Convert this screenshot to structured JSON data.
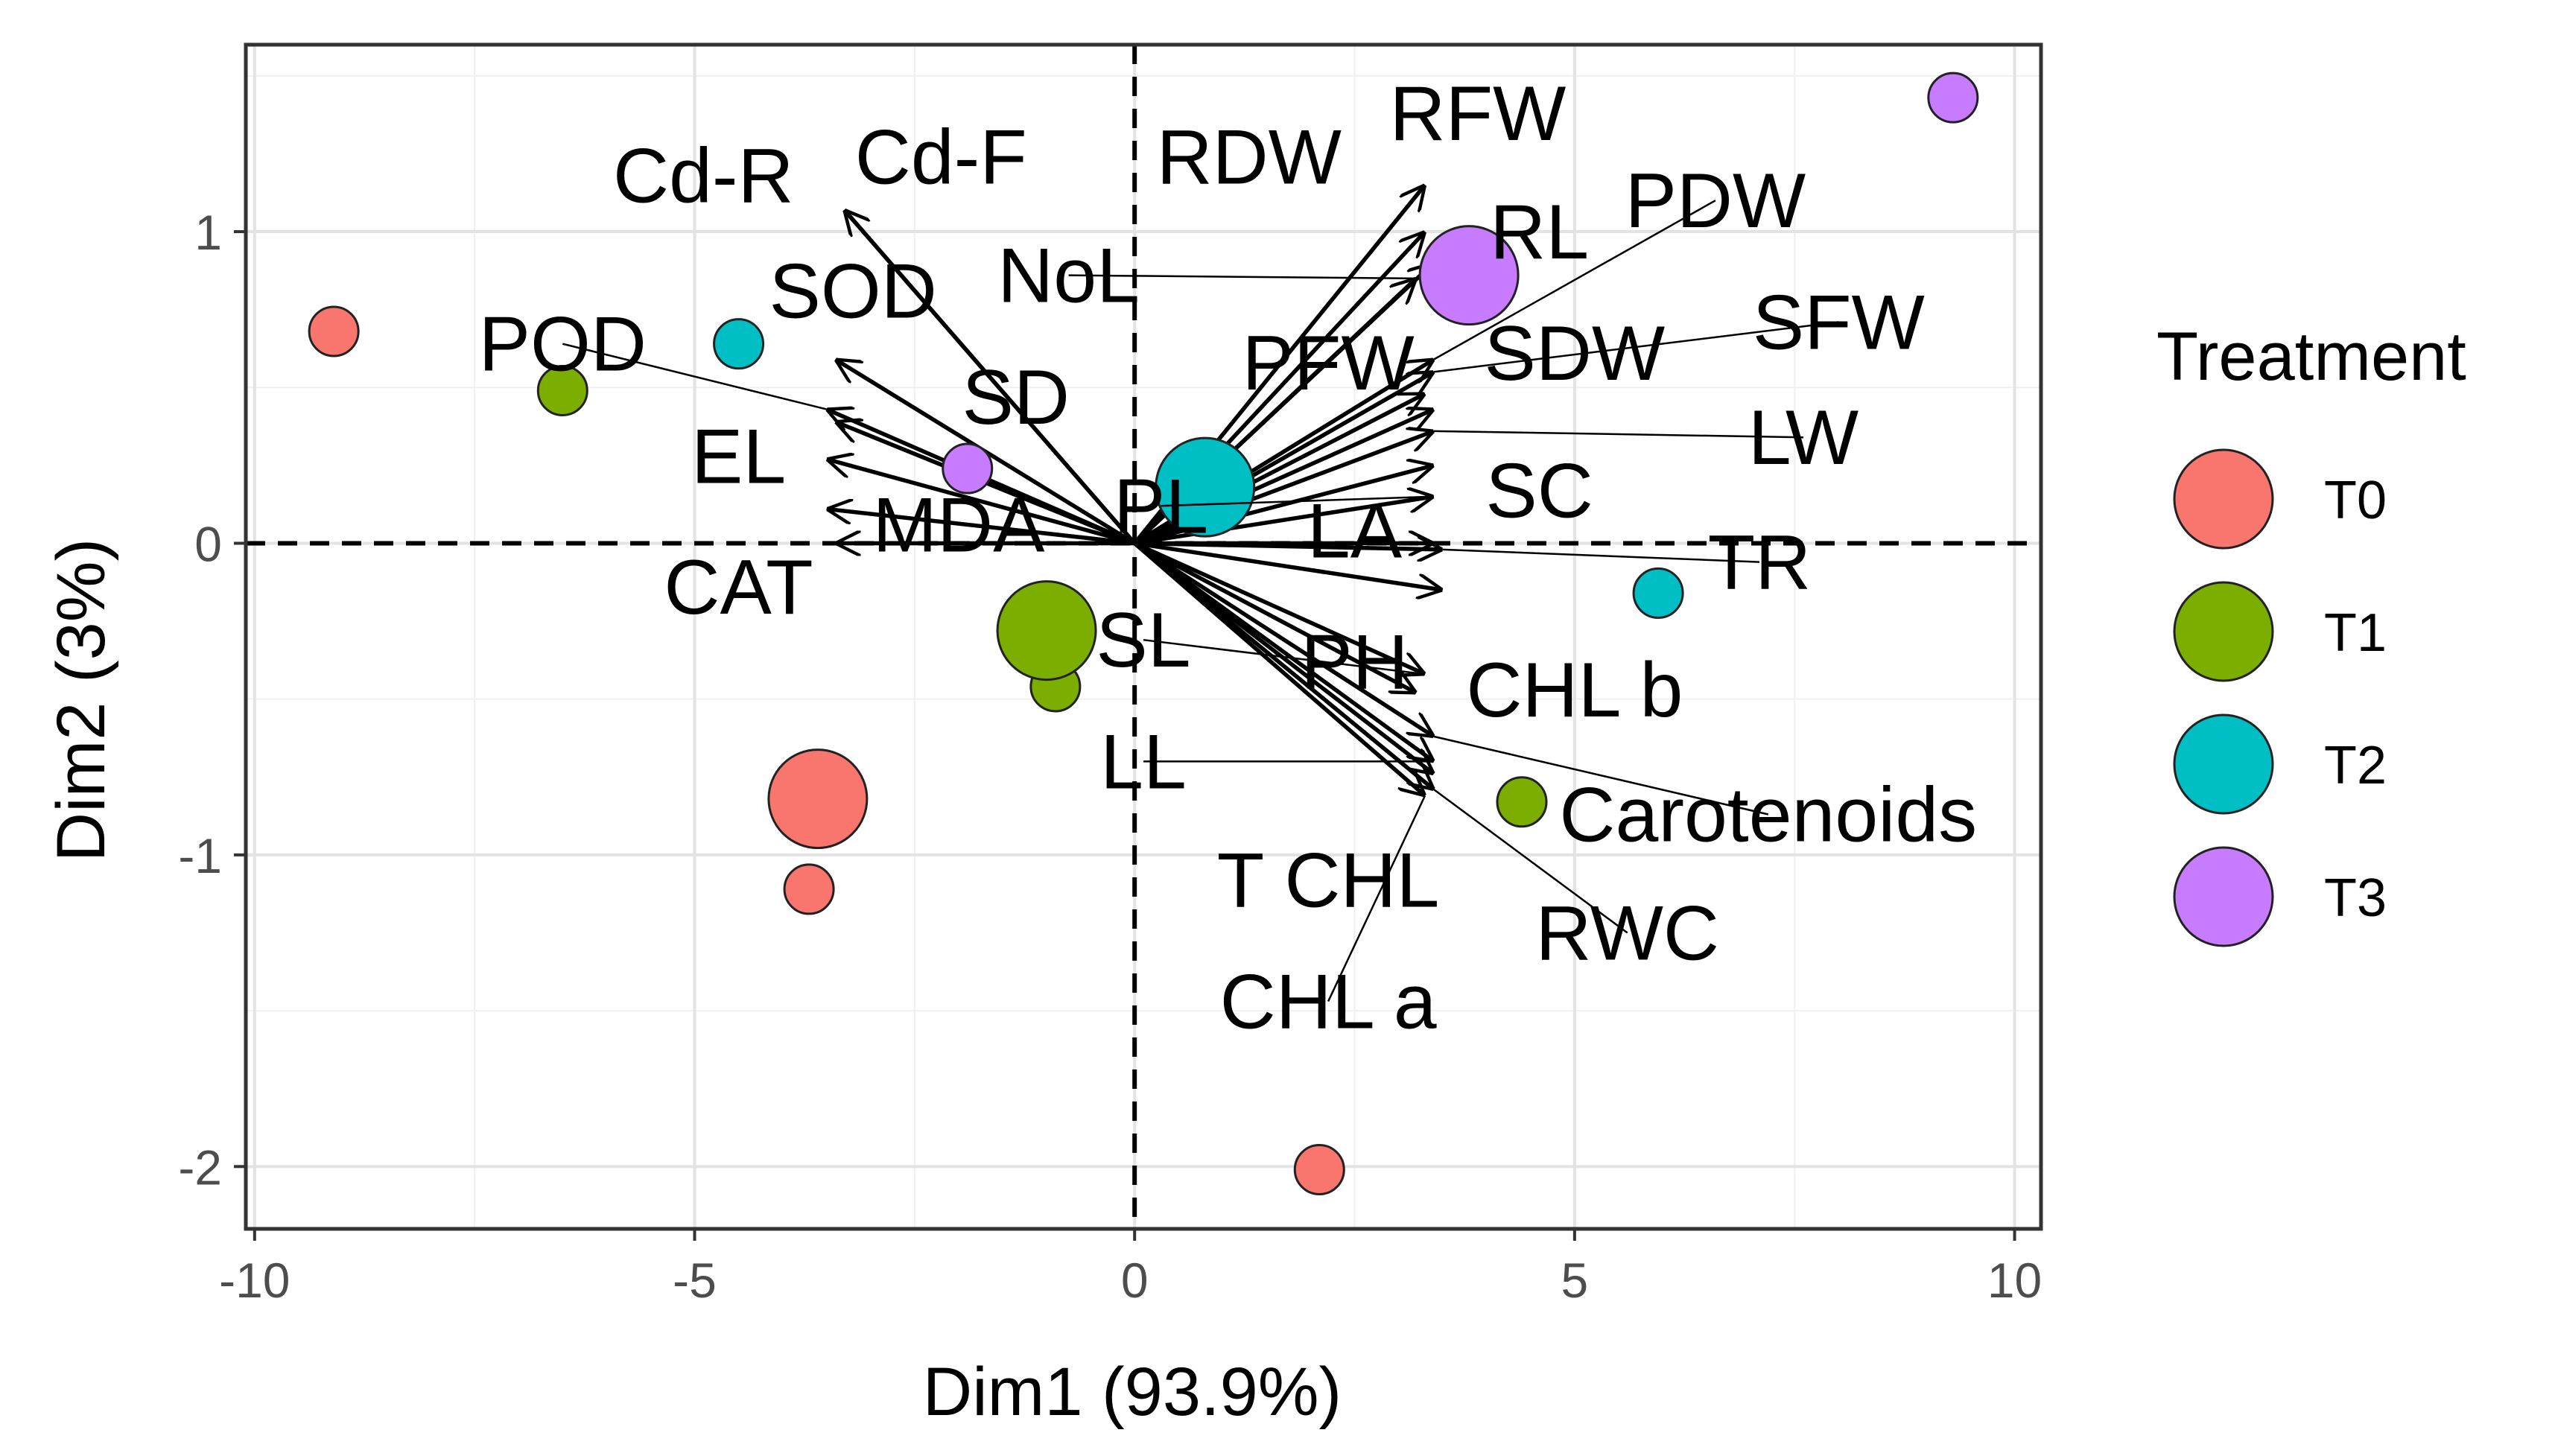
{
  "chart_data": {
    "type": "scatter",
    "subtype": "pca-biplot",
    "xlabel": "Dim1 (93.9%)",
    "ylabel": "Dim2 (3%)",
    "xlim": [
      -10.1,
      10.3
    ],
    "ylim": [
      -2.2,
      1.6
    ],
    "xticks": [
      -10,
      -5,
      0,
      5,
      10
    ],
    "yticks": [
      -2,
      -1,
      0,
      1
    ],
    "xtick_labels": [
      "-10",
      "-5",
      "0",
      "5",
      "10"
    ],
    "ytick_labels": [
      "-2",
      "-1",
      "0",
      "1"
    ],
    "grid": true,
    "reference_lines": {
      "x": 0,
      "y": 0,
      "style": "dashed"
    },
    "legend": {
      "title": "Treatment",
      "placement": "right",
      "entries": [
        {
          "name": "T0",
          "color": "#F8766D"
        },
        {
          "name": "T1",
          "color": "#7CAE00"
        },
        {
          "name": "T2",
          "color": "#00BFC4"
        },
        {
          "name": "T3",
          "color": "#C77CFF"
        }
      ]
    },
    "points": [
      {
        "group": "T0",
        "x": -9.1,
        "y": 0.68
      },
      {
        "group": "T0",
        "x": -3.7,
        "y": -1.11
      },
      {
        "group": "T0",
        "x": 2.1,
        "y": -2.01
      },
      {
        "group": "T1",
        "x": -6.5,
        "y": 0.49
      },
      {
        "group": "T1",
        "x": -0.9,
        "y": -0.46
      },
      {
        "group": "T1",
        "x": 4.4,
        "y": -0.83
      },
      {
        "group": "T2",
        "x": -4.5,
        "y": 0.64
      },
      {
        "group": "T2",
        "x": 5.95,
        "y": -0.16
      },
      {
        "group": "T3",
        "x": -1.9,
        "y": 0.24
      },
      {
        "group": "T3",
        "x": 9.3,
        "y": 1.43
      }
    ],
    "centroids": [
      {
        "group": "T0",
        "x": -3.6,
        "y": -0.82
      },
      {
        "group": "T1",
        "x": -1.0,
        "y": -0.28
      },
      {
        "group": "T2",
        "x": 0.8,
        "y": 0.18
      },
      {
        "group": "T3",
        "x": 3.8,
        "y": 0.86
      }
    ],
    "variables": [
      {
        "name": "Cd-R",
        "x": -3.3,
        "y": 1.07,
        "label_x": -4.9,
        "label_y": 1.18
      },
      {
        "name": "Cd-F",
        "x": -3.3,
        "y": 1.07,
        "label_x": -2.2,
        "label_y": 1.24
      },
      {
        "name": "SOD",
        "x": -3.4,
        "y": 0.59,
        "label_x": -3.2,
        "label_y": 0.81
      },
      {
        "name": "POD",
        "x": -3.5,
        "y": 0.43,
        "label_x": -6.5,
        "label_y": 0.64
      },
      {
        "name": "SD",
        "x": -3.4,
        "y": 0.39,
        "label_x": -1.35,
        "label_y": 0.47
      },
      {
        "name": "EL",
        "x": -3.5,
        "y": 0.27,
        "label_x": -4.5,
        "label_y": 0.28
      },
      {
        "name": "MDA",
        "x": -3.5,
        "y": 0.11,
        "label_x": -2.0,
        "label_y": 0.06
      },
      {
        "name": "CAT",
        "x": -3.4,
        "y": 0.0,
        "label_x": -4.5,
        "label_y": -0.14
      },
      {
        "name": "RFW",
        "x": 3.3,
        "y": 1.15,
        "label_x": 3.9,
        "label_y": 1.38
      },
      {
        "name": "RDW",
        "x": 3.3,
        "y": 1.0,
        "label_x": 1.3,
        "label_y": 1.24
      },
      {
        "name": "NoL",
        "x": 3.2,
        "y": 0.85,
        "label_x": -0.75,
        "label_y": 0.86
      },
      {
        "name": "RL",
        "x": 3.4,
        "y": 0.9,
        "label_x": 4.6,
        "label_y": 1.0
      },
      {
        "name": "PDW",
        "x": 3.4,
        "y": 0.59,
        "label_x": 6.6,
        "label_y": 1.1
      },
      {
        "name": "PFW",
        "x": 3.3,
        "y": 0.48,
        "label_x": 2.2,
        "label_y": 0.58
      },
      {
        "name": "SFW",
        "x": 3.4,
        "y": 0.55,
        "label_x": 8.0,
        "label_y": 0.71
      },
      {
        "name": "SDW",
        "x": 3.4,
        "y": 0.43,
        "label_x": 5.0,
        "label_y": 0.61
      },
      {
        "name": "LW",
        "x": 3.4,
        "y": 0.36,
        "label_x": 7.6,
        "label_y": 0.34
      },
      {
        "name": "SC",
        "x": 3.4,
        "y": 0.25,
        "label_x": 4.6,
        "label_y": 0.17
      },
      {
        "name": "PL",
        "x": 3.4,
        "y": 0.15,
        "label_x": 0.3,
        "label_y": 0.12
      },
      {
        "name": "LA",
        "x": 3.4,
        "y": 0.0,
        "label_x": 2.5,
        "label_y": 0.04
      },
      {
        "name": "TR",
        "x": 3.5,
        "y": -0.02,
        "label_x": 7.1,
        "label_y": -0.06
      },
      {
        "name": "PH",
        "x": 3.2,
        "y": -0.48,
        "label_x": 2.5,
        "label_y": -0.38
      },
      {
        "name": "SL",
        "x": 3.3,
        "y": -0.42,
        "label_x": 0.1,
        "label_y": -0.31
      },
      {
        "name": "CHL b",
        "x": 3.5,
        "y": -0.15,
        "label_x": 5.0,
        "label_y": -0.47
      },
      {
        "name": "LL",
        "x": 3.4,
        "y": -0.7,
        "label_x": 0.1,
        "label_y": -0.7
      },
      {
        "name": "Carotenoids",
        "x": 3.4,
        "y": -0.62,
        "label_x": 7.2,
        "label_y": -0.87
      },
      {
        "name": "T CHL",
        "x": 3.4,
        "y": -0.74,
        "label_x": 2.2,
        "label_y": -1.08
      },
      {
        "name": "RWC",
        "x": 3.4,
        "y": -0.79,
        "label_x": 5.6,
        "label_y": -1.25
      },
      {
        "name": "CHL a",
        "x": 3.3,
        "y": -0.81,
        "label_x": 2.2,
        "label_y": -1.47
      }
    ]
  }
}
